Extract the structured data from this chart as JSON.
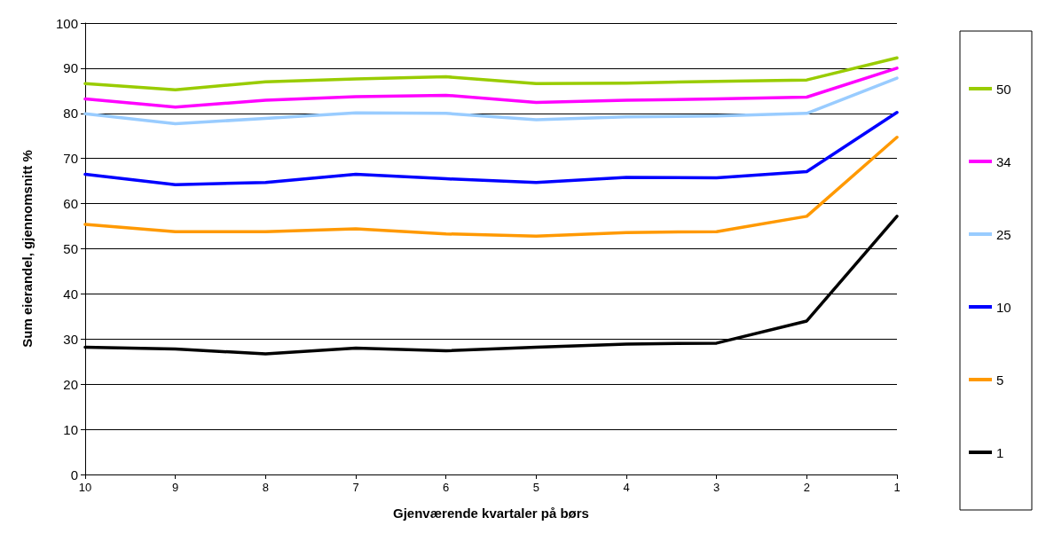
{
  "chart_data": {
    "type": "line",
    "xlabel": "Gjenværende kvartaler på børs",
    "ylabel": "Sum eierandel, gjennomsnitt %",
    "categories": [
      "10",
      "9",
      "8",
      "7",
      "6",
      "5",
      "4",
      "3",
      "2",
      "1"
    ],
    "ylim": [
      0,
      100
    ],
    "yticks": [
      0,
      10,
      20,
      30,
      40,
      50,
      60,
      70,
      80,
      90,
      100
    ],
    "grid": "y",
    "legend": "right",
    "marker": "none",
    "line_style": "solid",
    "series": [
      {
        "name": "50",
        "color": "#99cc00",
        "values": [
          86.6,
          85.2,
          87.0,
          87.6,
          88.1,
          86.6,
          86.7,
          87.1,
          87.4,
          92.3
        ]
      },
      {
        "name": "34",
        "color": "#ff00ff",
        "values": [
          83.2,
          81.4,
          82.9,
          83.7,
          84.0,
          82.4,
          82.9,
          83.2,
          83.6,
          90.0
        ]
      },
      {
        "name": "25",
        "color": "#99ccff",
        "values": [
          79.9,
          77.7,
          78.9,
          80.1,
          80.0,
          78.6,
          79.2,
          79.4,
          80.0,
          87.8
        ]
      },
      {
        "name": "10",
        "color": "#0000ff",
        "values": [
          66.5,
          64.2,
          64.7,
          66.5,
          65.5,
          64.7,
          65.8,
          65.7,
          67.1,
          80.2
        ]
      },
      {
        "name": "5",
        "color": "#ff9900",
        "values": [
          55.4,
          53.8,
          53.8,
          54.4,
          53.3,
          52.8,
          53.6,
          53.8,
          57.2,
          74.7
        ]
      },
      {
        "name": "1",
        "color": "#000000",
        "values": [
          28.2,
          27.8,
          26.7,
          28.0,
          27.4,
          28.2,
          28.9,
          29.1,
          34.0,
          57.2
        ]
      }
    ]
  }
}
